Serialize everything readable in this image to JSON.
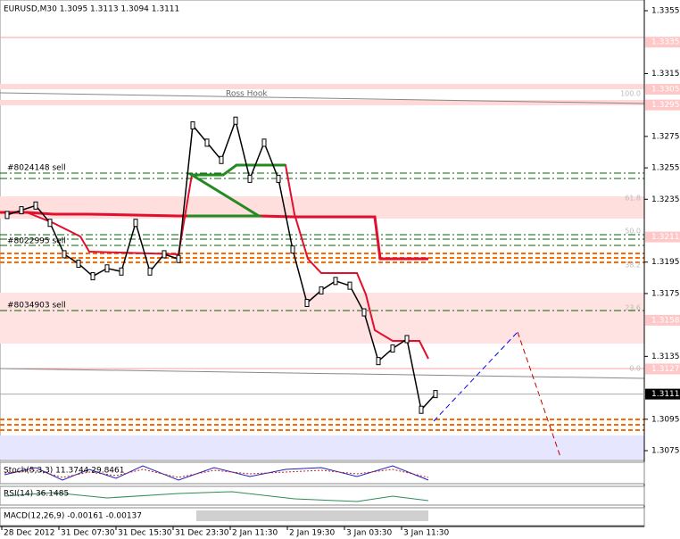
{
  "header": {
    "title": "EURUSD,M30  1.3095 1.3113 1.3094 1.3111"
  },
  "price_axis": {
    "ylim": [
      1.3075,
      1.3355
    ],
    "ticks": [
      1.3355,
      1.3315,
      1.3275,
      1.3255,
      1.3235,
      1.3195,
      1.3175,
      1.3135,
      1.3095,
      1.3075
    ],
    "level_labels": [
      1.3335,
      1.3305,
      1.3295,
      1.3211,
      1.3158,
      1.3127
    ],
    "current": 1.3111
  },
  "time_axis": [
    "28 Dec 2012",
    "31 Dec 07:30",
    "31 Dec 15:30",
    "31 Dec 23:30",
    "2 Jan 11:30",
    "2 Jan 19:30",
    "3 Jan 03:30",
    "3 Jan 11:30"
  ],
  "annotations": {
    "ross_hook": "Ross Hook",
    "sell_1": "#8024148 sell",
    "sell_2": "#8022995 sell",
    "sell_3": "#8034903 sell",
    "fib": [
      "100.0",
      "61.8",
      "50.0",
      "38.2",
      "23.6",
      "0.0"
    ]
  },
  "price_series": {
    "values": [
      1.3225,
      1.3228,
      1.3231,
      1.322,
      1.32,
      1.3194,
      1.3186,
      1.3191,
      1.3189,
      1.322,
      1.3189,
      1.32,
      1.3197,
      1.3282,
      1.3271,
      1.326,
      1.3285,
      1.3248,
      1.3271,
      1.3248,
      1.3203,
      1.3169,
      1.3177,
      1.3183,
      1.318,
      1.3163,
      1.3132,
      1.314,
      1.3146,
      1.3101,
      1.3111
    ]
  },
  "indicators": {
    "stoch": "Stoch(5,3,3) 11.3744 29.8461",
    "rsi": "RSI(14) 36.1485",
    "macd": "MACD(12,26,9) -0.00161 -0.00137"
  }
}
